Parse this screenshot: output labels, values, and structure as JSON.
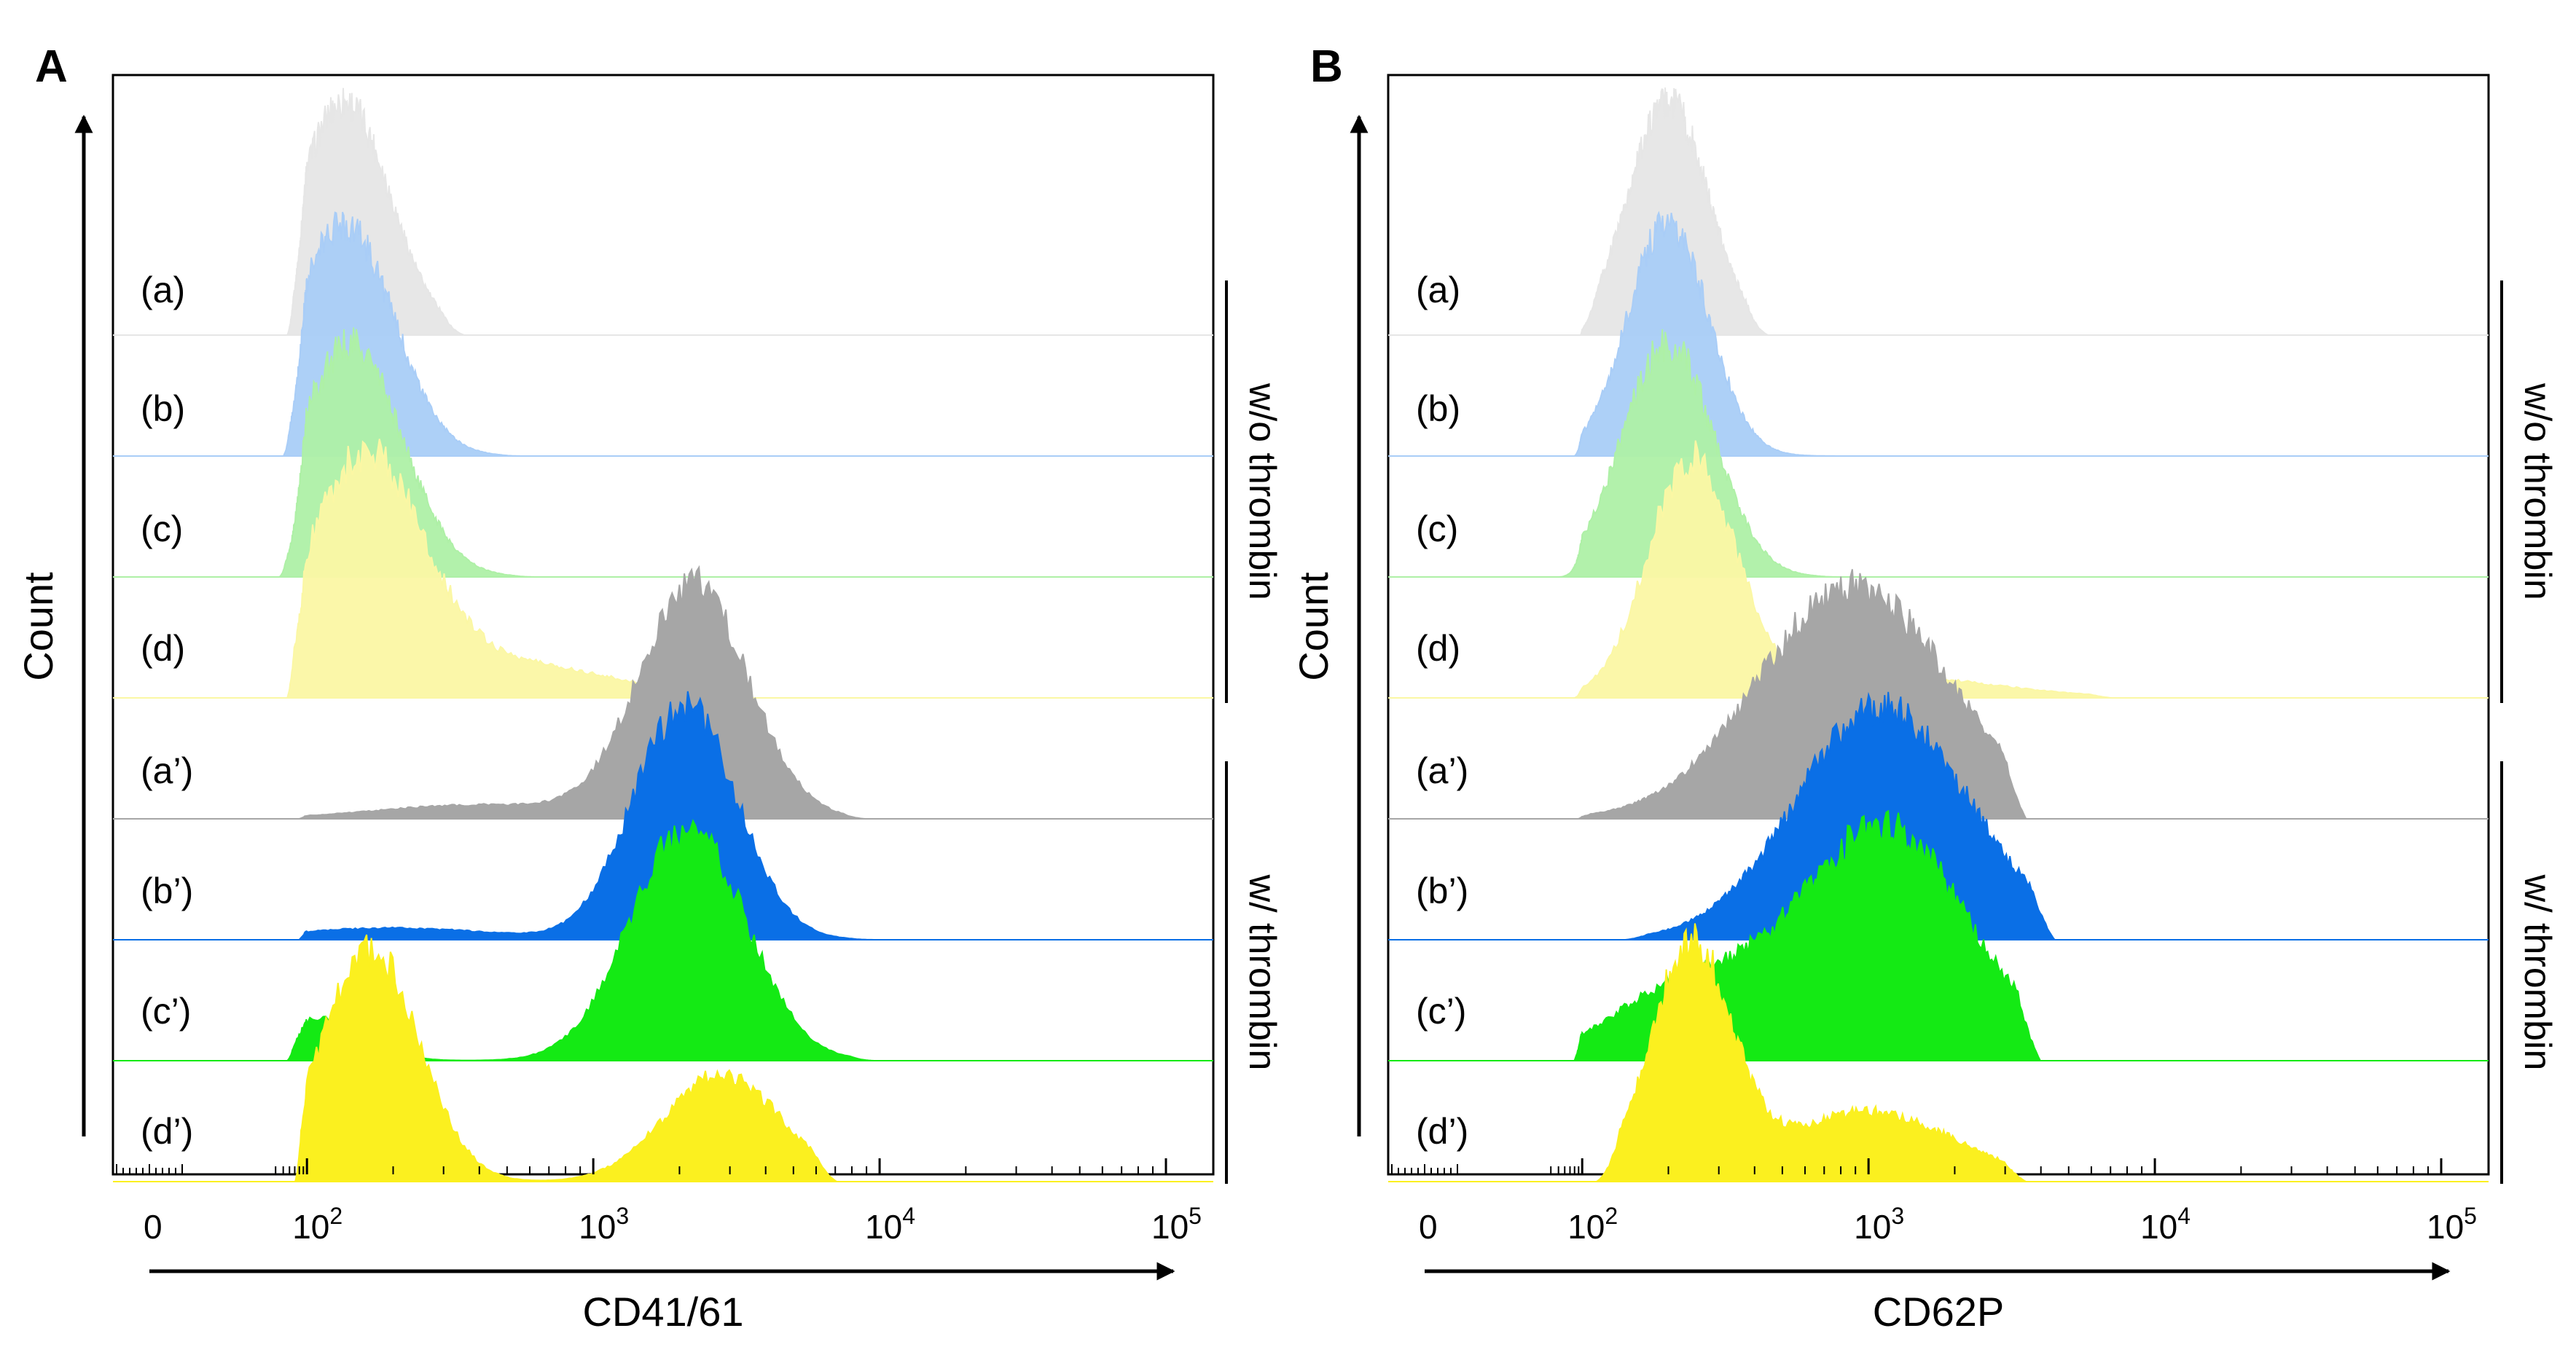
{
  "chart_data": [
    {
      "type": "histogram-overlay",
      "panel": "A",
      "xlabel": "CD41/61",
      "ylabel": "Count",
      "x_scale": "biexponential (log10 fluorescence intensity)",
      "x_ticks": [
        {
          "value": 0,
          "base": "0",
          "exp": ""
        },
        {
          "value": 2,
          "base": "10",
          "exp": "2"
        },
        {
          "value": 3,
          "base": "10",
          "exp": "3"
        },
        {
          "value": 4,
          "base": "10",
          "exp": "4"
        },
        {
          "value": 5,
          "base": "10",
          "exp": "5"
        }
      ],
      "groups": [
        {
          "label": "w/o thrombin",
          "rows": [
            0,
            3
          ]
        },
        {
          "label": "w/ thrombin",
          "rows": [
            4,
            7
          ]
        }
      ],
      "series": [
        {
          "name": "(a)",
          "color": "#e6e6e6",
          "opacity": 0.95,
          "peaks": [
            {
              "center": 2.13,
              "width": 0.16,
              "height": 1.0
            }
          ],
          "range": [
            1.75,
            2.55
          ]
        },
        {
          "name": "(b)",
          "color": "#a9cdf7",
          "opacity": 0.95,
          "peaks": [
            {
              "center": 2.13,
              "width": 0.17,
              "height": 1.0
            }
          ],
          "range": [
            1.7,
            2.75
          ]
        },
        {
          "name": "(c)",
          "color": "#aef0a6",
          "opacity": 0.95,
          "peaks": [
            {
              "center": 2.15,
              "width": 0.18,
              "height": 1.0
            }
          ],
          "range": [
            1.65,
            2.8
          ]
        },
        {
          "name": "(d)",
          "color": "#fbf7a4",
          "opacity": 0.95,
          "peaks": [
            {
              "center": 2.2,
              "width": 0.2,
              "height": 1.0
            },
            {
              "center": 2.7,
              "width": 0.35,
              "height": 0.15
            }
          ],
          "range": [
            1.75,
            3.5
          ]
        },
        {
          "name": "(a’)",
          "color": "#a6a6a6",
          "opacity": 1,
          "peaks": [
            {
              "center": 3.35,
              "width": 0.19,
              "height": 1.0
            },
            {
              "center": 2.6,
              "width": 0.35,
              "height": 0.06
            }
          ],
          "range": [
            1.9,
            3.95
          ]
        },
        {
          "name": "(b’)",
          "color": "#0a6fe6",
          "opacity": 1,
          "peaks": [
            {
              "center": 3.32,
              "width": 0.18,
              "height": 1.0
            },
            {
              "center": 2.3,
              "width": 0.35,
              "height": 0.05
            }
          ],
          "range": [
            1.9,
            3.98
          ]
        },
        {
          "name": "(c’)",
          "color": "#14ea14",
          "opacity": 1,
          "peaks": [
            {
              "center": 3.33,
              "width": 0.2,
              "height": 1.0
            },
            {
              "center": 2.05,
              "width": 0.15,
              "height": 0.18
            }
          ],
          "range": [
            1.75,
            3.98
          ]
        },
        {
          "name": "(d’)",
          "color": "#fbf01f",
          "opacity": 1,
          "peaks": [
            {
              "center": 2.22,
              "width": 0.17,
              "height": 1.0
            },
            {
              "center": 3.45,
              "width": 0.2,
              "height": 0.46
            }
          ],
          "range": [
            1.85,
            3.85
          ]
        }
      ]
    },
    {
      "type": "histogram-overlay",
      "panel": "B",
      "xlabel": "CD62P",
      "ylabel": "Count",
      "x_scale": "biexponential (log10 fluorescence intensity)",
      "x_ticks": [
        {
          "value": 0,
          "base": "0",
          "exp": ""
        },
        {
          "value": 2,
          "base": "10",
          "exp": "2"
        },
        {
          "value": 3,
          "base": "10",
          "exp": "3"
        },
        {
          "value": 4,
          "base": "10",
          "exp": "4"
        },
        {
          "value": 5,
          "base": "10",
          "exp": "5"
        }
      ],
      "groups": [
        {
          "label": "w/o thrombin",
          "rows": [
            0,
            3
          ]
        },
        {
          "label": "w/ thrombin",
          "rows": [
            4,
            7
          ]
        }
      ],
      "series": [
        {
          "name": "(a)",
          "color": "#e6e6e6",
          "opacity": 0.95,
          "peaks": [
            {
              "center": 2.3,
              "width": 0.14,
              "height": 1.0
            }
          ],
          "range": [
            1.98,
            2.65
          ]
        },
        {
          "name": "(b)",
          "color": "#a9cdf7",
          "opacity": 0.95,
          "peaks": [
            {
              "center": 2.3,
              "width": 0.14,
              "height": 1.0
            }
          ],
          "range": [
            1.9,
            2.95
          ]
        },
        {
          "name": "(c)",
          "color": "#aef0a6",
          "opacity": 0.95,
          "peaks": [
            {
              "center": 2.3,
              "width": 0.16,
              "height": 1.0
            }
          ],
          "range": [
            1.7,
            2.9
          ]
        },
        {
          "name": "(d)",
          "color": "#fbf7a4",
          "opacity": 0.95,
          "peaks": [
            {
              "center": 2.38,
              "width": 0.15,
              "height": 1.0
            },
            {
              "center": 3.0,
              "width": 0.4,
              "height": 0.1
            }
          ],
          "range": [
            1.9,
            3.85
          ]
        },
        {
          "name": "(a’)",
          "color": "#a6a6a6",
          "opacity": 1,
          "peaks": [
            {
              "center": 2.95,
              "width": 0.33,
              "height": 1.0
            }
          ],
          "range": [
            1.95,
            3.55
          ]
        },
        {
          "name": "(b’)",
          "color": "#0a6fe6",
          "opacity": 1,
          "peaks": [
            {
              "center": 3.05,
              "width": 0.3,
              "height": 1.0
            }
          ],
          "range": [
            2.15,
            3.65
          ]
        },
        {
          "name": "(c’)",
          "color": "#14ea14",
          "opacity": 1,
          "peaks": [
            {
              "center": 3.05,
              "width": 0.3,
              "height": 1.0
            },
            {
              "center": 2.35,
              "width": 0.25,
              "height": 0.3
            }
          ],
          "range": [
            1.9,
            3.6
          ]
        },
        {
          "name": "(d’)",
          "color": "#fbf01f",
          "opacity": 1,
          "peaks": [
            {
              "center": 2.38,
              "width": 0.14,
              "height": 1.0
            },
            {
              "center": 3.0,
              "width": 0.3,
              "height": 0.3
            }
          ],
          "range": [
            2.05,
            3.55
          ]
        }
      ]
    }
  ]
}
